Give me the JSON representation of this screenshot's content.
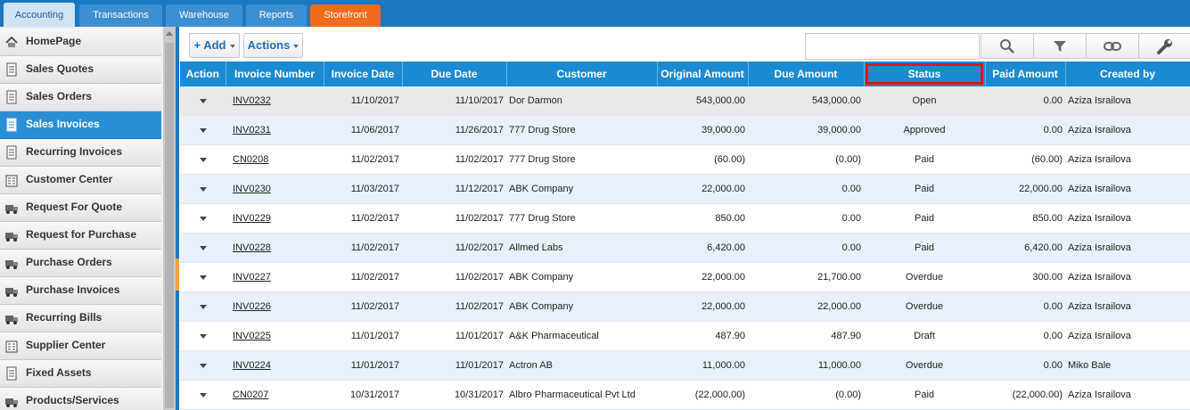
{
  "tabs": [
    {
      "label": "Accounting"
    },
    {
      "label": "Transactions"
    },
    {
      "label": "Warehouse"
    },
    {
      "label": "Reports"
    },
    {
      "label": "Storefront"
    }
  ],
  "sidebar": {
    "items": [
      {
        "label": "HomePage",
        "icon": "home-icon"
      },
      {
        "label": "Sales Quotes",
        "icon": "document-icon"
      },
      {
        "label": "Sales Orders",
        "icon": "document-icon"
      },
      {
        "label": "Sales Invoices",
        "icon": "document-icon"
      },
      {
        "label": "Recurring Invoices",
        "icon": "document-icon"
      },
      {
        "label": "Customer Center",
        "icon": "building-icon"
      },
      {
        "label": "Request For Quote",
        "icon": "truck-icon"
      },
      {
        "label": "Request for Purchase",
        "icon": "truck-icon"
      },
      {
        "label": "Purchase Orders",
        "icon": "truck-icon"
      },
      {
        "label": "Purchase Invoices",
        "icon": "truck-icon"
      },
      {
        "label": "Recurring Bills",
        "icon": "truck-icon"
      },
      {
        "label": "Supplier Center",
        "icon": "building-icon"
      },
      {
        "label": "Fixed Assets",
        "icon": "document-icon"
      },
      {
        "label": "Products/Services",
        "icon": "truck-icon"
      }
    ],
    "active_label": "Sales Invoices"
  },
  "toolbar": {
    "add_label": "+ Add",
    "actions_label": "Actions",
    "search_value": ""
  },
  "grid": {
    "columns": [
      "Action",
      "Invoice Number",
      "Invoice Date",
      "Due Date",
      "Customer",
      "Original Amount",
      "Due Amount",
      "Status",
      "Paid Amount",
      "Created by"
    ],
    "rows": [
      {
        "invoice": "INV0232",
        "invoice_date": "11/10/2017",
        "due_date": "11/10/2017",
        "customer": "Dor Darmon",
        "original": "543,000.00",
        "due": "543,000.00",
        "status": "Open",
        "paid": "0.00",
        "created_by": "Aziza Israilova"
      },
      {
        "invoice": "INV0231",
        "invoice_date": "11/06/2017",
        "due_date": "11/26/2017",
        "customer": "777 Drug Store",
        "original": "39,000.00",
        "due": "39,000.00",
        "status": "Approved",
        "paid": "0.00",
        "created_by": "Aziza Israilova"
      },
      {
        "invoice": "CN0208",
        "invoice_date": "11/02/2017",
        "due_date": "11/02/2017",
        "customer": "777 Drug Store",
        "original": "(60.00)",
        "due": "(0.00)",
        "status": "Paid",
        "paid": "(60.00)",
        "created_by": "Aziza Israilova"
      },
      {
        "invoice": "INV0230",
        "invoice_date": "11/03/2017",
        "due_date": "11/12/2017",
        "customer": "ABK Company",
        "original": "22,000.00",
        "due": "0.00",
        "status": "Paid",
        "paid": "22,000.00",
        "created_by": "Aziza Israilova"
      },
      {
        "invoice": "INV0229",
        "invoice_date": "11/02/2017",
        "due_date": "11/02/2017",
        "customer": "777 Drug Store",
        "original": "850.00",
        "due": "0.00",
        "status": "Paid",
        "paid": "850.00",
        "created_by": "Aziza Israilova"
      },
      {
        "invoice": "INV0228",
        "invoice_date": "11/02/2017",
        "due_date": "11/02/2017",
        "customer": "Allmed Labs",
        "original": "6,420.00",
        "due": "0.00",
        "status": "Paid",
        "paid": "6,420.00",
        "created_by": "Aziza Israilova"
      },
      {
        "invoice": "INV0227",
        "invoice_date": "11/02/2017",
        "due_date": "11/02/2017",
        "customer": "ABK Company",
        "original": "22,000.00",
        "due": "21,700.00",
        "status": "Overdue",
        "paid": "300.00",
        "created_by": "Aziza Israilova"
      },
      {
        "invoice": "INV0226",
        "invoice_date": "11/02/2017",
        "due_date": "11/02/2017",
        "customer": "ABK Company",
        "original": "22,000.00",
        "due": "22,000.00",
        "status": "Overdue",
        "paid": "0.00",
        "created_by": "Aziza Israilova"
      },
      {
        "invoice": "INV0225",
        "invoice_date": "11/01/2017",
        "due_date": "11/01/2017",
        "customer": "A&K Pharmaceutical",
        "original": "487.90",
        "due": "487.90",
        "status": "Draft",
        "paid": "0.00",
        "created_by": "Aziza Israilova"
      },
      {
        "invoice": "INV0224",
        "invoice_date": "11/01/2017",
        "due_date": "11/01/2017",
        "customer": "Actron AB",
        "original": "11,000.00",
        "due": "11,000.00",
        "status": "Overdue",
        "paid": "0.00",
        "created_by": "Miko Bale"
      },
      {
        "invoice": "CN0207",
        "invoice_date": "10/31/2017",
        "due_date": "10/31/2017",
        "customer": "Albro Pharmaceutical Pvt Ltd",
        "original": "(22,000.00)",
        "due": "(0.00)",
        "status": "Paid",
        "paid": "(22,000.00)",
        "created_by": "Aziza Israilova"
      }
    ]
  },
  "colors": {
    "brand_blue": "#1a78c2",
    "header_blue": "#1a8ad4",
    "active_item": "#2a8fd6",
    "storefront_orange": "#f26a1b",
    "highlight_red": "#e3141e"
  }
}
